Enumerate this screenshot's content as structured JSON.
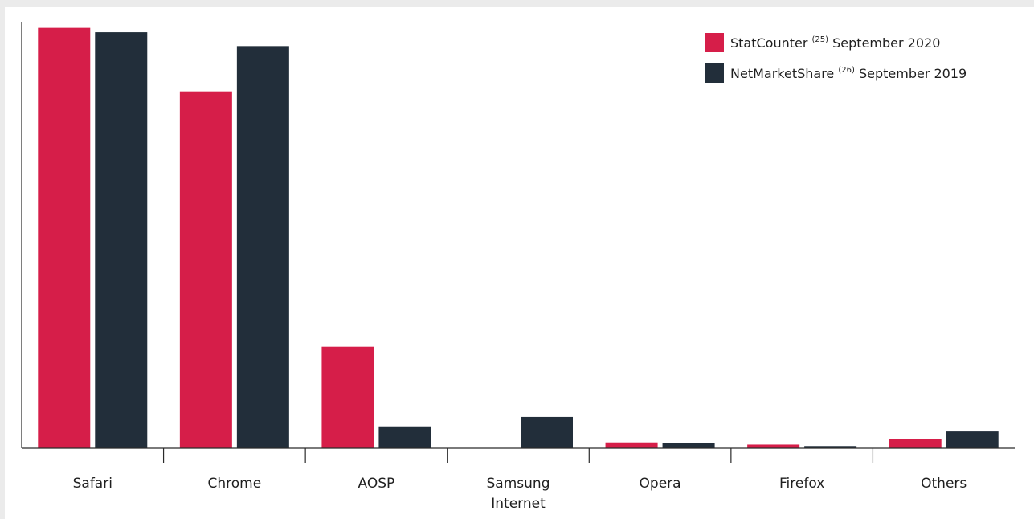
{
  "chart_data": {
    "type": "bar",
    "categories": [
      [
        "Safari"
      ],
      [
        "Chrome"
      ],
      [
        "AOSP"
      ],
      [
        "Samsung",
        "Internet"
      ],
      [
        "Opera"
      ],
      [
        "Firefox"
      ],
      [
        "Others"
      ]
    ],
    "series": [
      {
        "name": "StatCounter",
        "ref": "(25)",
        "date": "September 2020",
        "color": "#d61e49",
        "values": [
          57.6,
          48.9,
          13.9,
          0,
          0.8,
          0.5,
          1.3
        ]
      },
      {
        "name": "NetMarketShare",
        "ref": "(26)",
        "date": "September 2019",
        "color": "#222e3a",
        "values": [
          57.0,
          55.1,
          3.0,
          4.3,
          0.7,
          0.3,
          2.3
        ]
      }
    ],
    "ylim": [
      0,
      58
    ],
    "grid": false,
    "legend_position": "top-right"
  }
}
